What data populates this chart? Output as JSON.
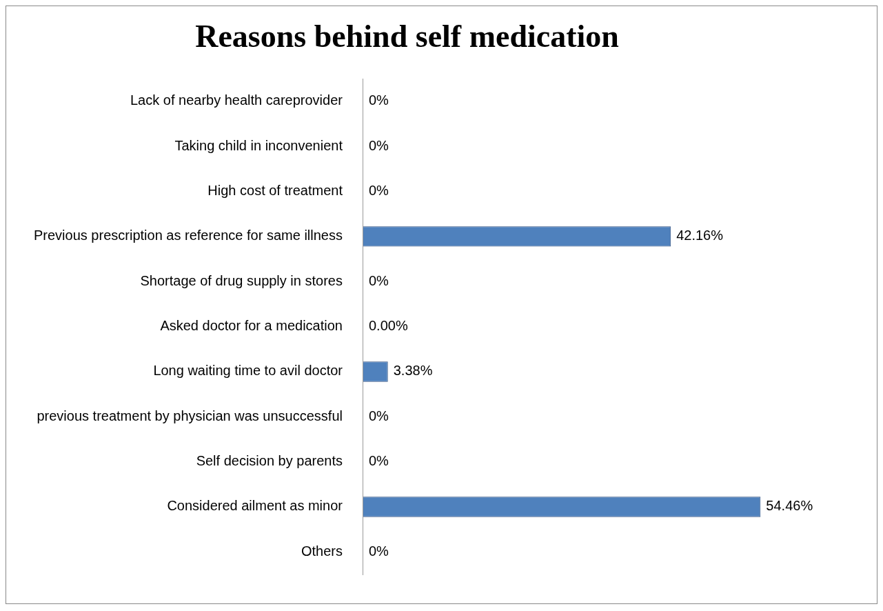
{
  "chart_data": {
    "type": "bar",
    "orientation": "horizontal",
    "title": "Reasons behind self medication",
    "categories": [
      "Lack of nearby health careprovider",
      "Taking child in inconvenient",
      "High cost of treatment",
      "Previous prescription as reference for same illness",
      "Shortage of drug supply in stores",
      "Asked doctor for a medication",
      "Long waiting time to avil doctor",
      "previous treatment by physician was unsuccessful",
      "Self decision by parents",
      "Considered ailment as minor",
      "Others"
    ],
    "values": [
      0,
      0,
      0,
      42.16,
      0,
      0,
      3.38,
      0,
      0,
      54.46,
      0
    ],
    "value_labels": [
      "0%",
      "0%",
      "0%",
      "42.16%",
      "0%",
      "0.00%",
      "3.38%",
      "0%",
      "0%",
      "54.46%",
      "0%"
    ],
    "color": "#4f81bd",
    "tick_labels": "y",
    "grid": false,
    "legend": false
  }
}
